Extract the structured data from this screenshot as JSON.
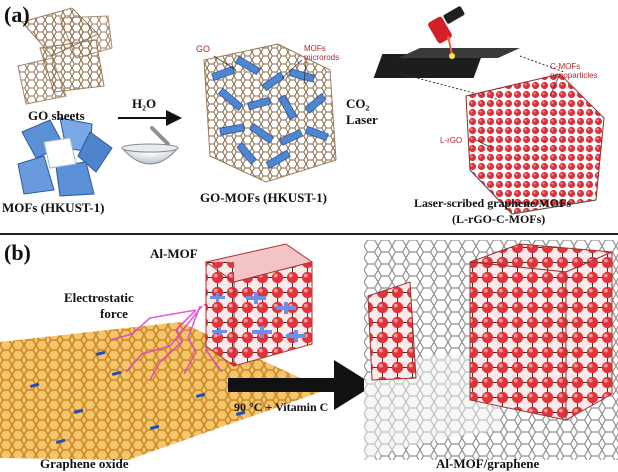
{
  "panel_a": {
    "letter": "(a)",
    "go_sheets": "GO sheets",
    "mofs": "MOFs (HKUST-1)",
    "h2o": "H₂O",
    "go_label": "GO",
    "mofs_microrods": "MOFs microrods",
    "co2": "CO₂",
    "laser": "Laser",
    "go_mofs": "GO-MOFs (HKUST-1)",
    "cmofs_nano": "C-MOFs nanoparticles",
    "lrgo": "L-rGO",
    "laser_scribed": "Laser-scribed graphene/MOFs",
    "lrgo_cmofs": "(L-rGO-C-MOFs)"
  },
  "panel_b": {
    "letter": "(b)",
    "al_mof": "Al-MOF",
    "electrostatic": "Electrostatic",
    "force": "force",
    "condition": "90 °C + Vitamin C",
    "graphene_oxide": "Graphene oxide",
    "result": "Al-MOF/graphene"
  },
  "colors": {
    "divider": "#222222",
    "mof_blue": "#5b8fd6",
    "graphene_orange": "#e0a040",
    "mof_red": "#e0343a",
    "arc_pink": "#e040c8"
  }
}
